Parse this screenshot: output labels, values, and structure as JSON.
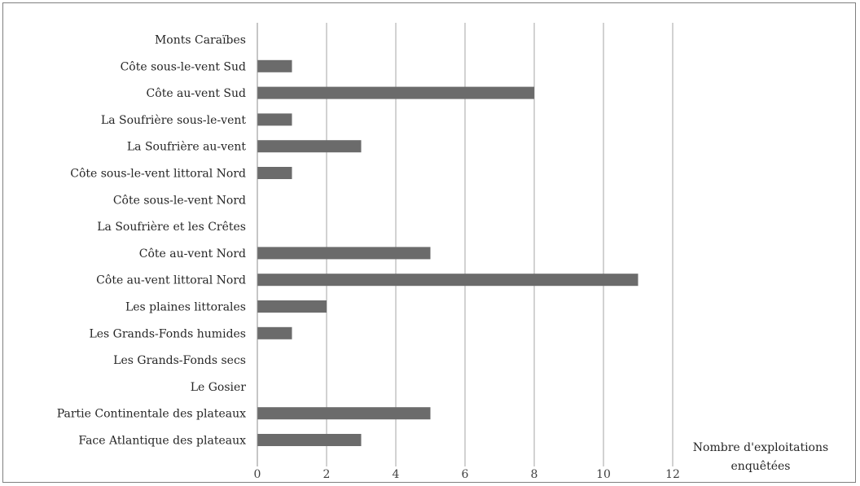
{
  "chart_data": {
    "type": "bar",
    "orientation": "horizontal",
    "categories": [
      "Monts Caraïbes",
      "Côte sous-le-vent Sud",
      "Côte au-vent Sud",
      "La Soufrière sous-le-vent",
      "La Soufrière au-vent",
      "Côte sous-le-vent littoral Nord",
      "Côte sous-le-vent Nord",
      "La Soufrière et les Crêtes",
      "Côte au-vent Nord",
      "Côte au-vent littoral Nord",
      "Les plaines littorales",
      "Les Grands-Fonds humides",
      "Les Grands-Fonds secs",
      "Le Gosier",
      "Partie Continentale des plateaux",
      "Face Atlantique des plateaux"
    ],
    "values": [
      0,
      1,
      8,
      1,
      3,
      1,
      0,
      0,
      5,
      11,
      2,
      1,
      0,
      0,
      5,
      3
    ],
    "xlim": [
      0,
      12
    ],
    "x_ticks": [
      "0",
      "2",
      "4",
      "6",
      "8",
      "10",
      "12"
    ],
    "xlabel_lines": [
      "Nombre d'exploitations",
      "enquêtées"
    ],
    "grid": "vertical",
    "bar_color": "#6b6b6b",
    "grid_color": "#a6a6a6"
  }
}
